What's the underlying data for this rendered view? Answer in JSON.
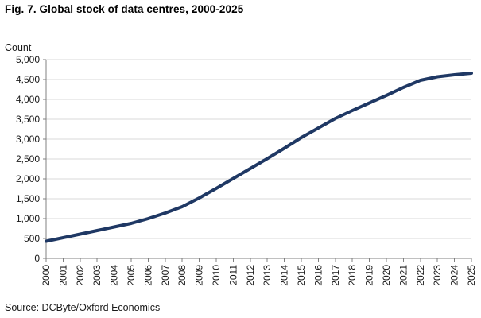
{
  "header": {
    "title": "Fig. 7. Global stock of data centres, 2000-2025"
  },
  "source": {
    "text": "Source: DCByte/Oxford Economics"
  },
  "colors": {
    "line": "#1f3864",
    "grid": "#d9d9d9",
    "axis": "#808080",
    "text": "#1a1a1a"
  },
  "chart_data": {
    "type": "line",
    "title": "Fig. 7. Global stock of data centres, 2000-2025",
    "xlabel": "",
    "ylabel": "Count",
    "categories": [
      "2000",
      "2001",
      "2002",
      "2003",
      "2004",
      "2005",
      "2006",
      "2007",
      "2008",
      "2009",
      "2010",
      "2011",
      "2012",
      "2013",
      "2014",
      "2015",
      "2016",
      "2017",
      "2018",
      "2019",
      "2020",
      "2021",
      "2022",
      "2023",
      "2024",
      "2025"
    ],
    "series": [
      {
        "name": "Global stock of data centres",
        "color": "#1f3864",
        "values": [
          430,
          520,
          610,
          700,
          790,
          880,
          1000,
          1140,
          1300,
          1520,
          1760,
          2010,
          2260,
          2510,
          2770,
          3040,
          3280,
          3520,
          3720,
          3910,
          4100,
          4300,
          4480,
          4570,
          4620,
          4660
        ]
      }
    ],
    "ylim": [
      0,
      5000
    ],
    "yticks": [
      0,
      500,
      1000,
      1500,
      2000,
      2500,
      3000,
      3500,
      4000,
      4500,
      5000
    ],
    "ytick_labels": [
      "0",
      "500",
      "1,000",
      "1,500",
      "2,000",
      "2,500",
      "3,000",
      "3,500",
      "4,000",
      "4,500",
      "5,000"
    ],
    "grid": "horizontal",
    "legend": "none",
    "x_label_rotation": -90
  }
}
